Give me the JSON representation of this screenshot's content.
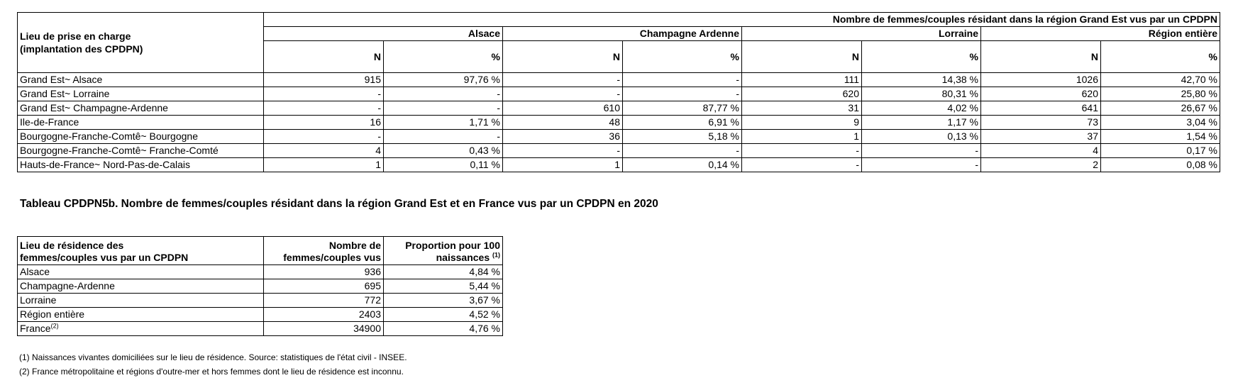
{
  "table1": {
    "row_header": [
      "Lieu de prise en charge",
      "(implantation des CPDPN)"
    ],
    "top_header": "Nombre de femmes/couples résidant dans la région Grand Est vus par un CPDPN",
    "regions": [
      "Alsace",
      "Champagne Ardenne",
      "Lorraine",
      "Région entière"
    ],
    "n_label": "N",
    "pct_label": "%",
    "rows": [
      {
        "label": "Grand Est~ Alsace",
        "cells": [
          "915",
          "97,76 %",
          "-",
          "-",
          "111",
          "14,38 %",
          "1026",
          "42,70 %"
        ]
      },
      {
        "label": "Grand Est~ Lorraine",
        "cells": [
          "-",
          "-",
          "-",
          "-",
          "620",
          "80,31 %",
          "620",
          "25,80 %"
        ]
      },
      {
        "label": "Grand Est~ Champagne-Ardenne",
        "cells": [
          "-",
          "-",
          "610",
          "87,77 %",
          "31",
          "4,02 %",
          "641",
          "26,67 %"
        ]
      },
      {
        "label": "Ile-de-France",
        "cells": [
          "16",
          "1,71 %",
          "48",
          "6,91 %",
          "9",
          "1,17 %",
          "73",
          "3,04 %"
        ]
      },
      {
        "label": "Bourgogne-Franche-Comtê~ Bourgogne",
        "cells": [
          "-",
          "-",
          "36",
          "5,18 %",
          "1",
          "0,13 %",
          "37",
          "1,54 %"
        ]
      },
      {
        "label": "Bourgogne-Franche-Comtê~ Franche-Comté",
        "cells": [
          "4",
          "0,43 %",
          "-",
          "-",
          "-",
          "-",
          "4",
          "0,17 %"
        ]
      },
      {
        "label": "Hauts-de-France~ Nord-Pas-de-Calais",
        "cells": [
          "1",
          "0,11 %",
          "1",
          "0,14 %",
          "-",
          "-",
          "2",
          "0,08 %"
        ]
      }
    ]
  },
  "table2": {
    "title": "Tableau CPDPN5b. Nombre de femmes/couples résidant dans la région Grand Est et en France vus par un CPDPN en 2020",
    "header": {
      "col1": [
        "Lieu de résidence des",
        "femmes/couples vus par un CPDPN"
      ],
      "col2": [
        "Nombre de",
        "femmes/couples vus"
      ],
      "col3": [
        "Proportion pour 100",
        "naissances"
      ],
      "col3_sup": "(1)"
    },
    "rows": [
      {
        "label": "Alsace",
        "n": "936",
        "p": "4,84 %"
      },
      {
        "label": "Champagne-Ardenne",
        "n": "695",
        "p": "5,44 %"
      },
      {
        "label": "Lorraine",
        "n": "772",
        "p": "3,67 %"
      },
      {
        "label": "Région entière",
        "n": "2403",
        "p": "4,52 %"
      },
      {
        "label": "France",
        "sup": "(2)",
        "n": "34900",
        "p": "4,76 %"
      }
    ]
  },
  "notes": [
    "(1) Naissances vivantes domiciliées sur le lieu de résidence. Source: statistiques de l'état civil - INSEE.",
    "(2) France métropolitaine et régions d'outre-mer et hors femmes dont le lieu de résidence est inconnu."
  ]
}
